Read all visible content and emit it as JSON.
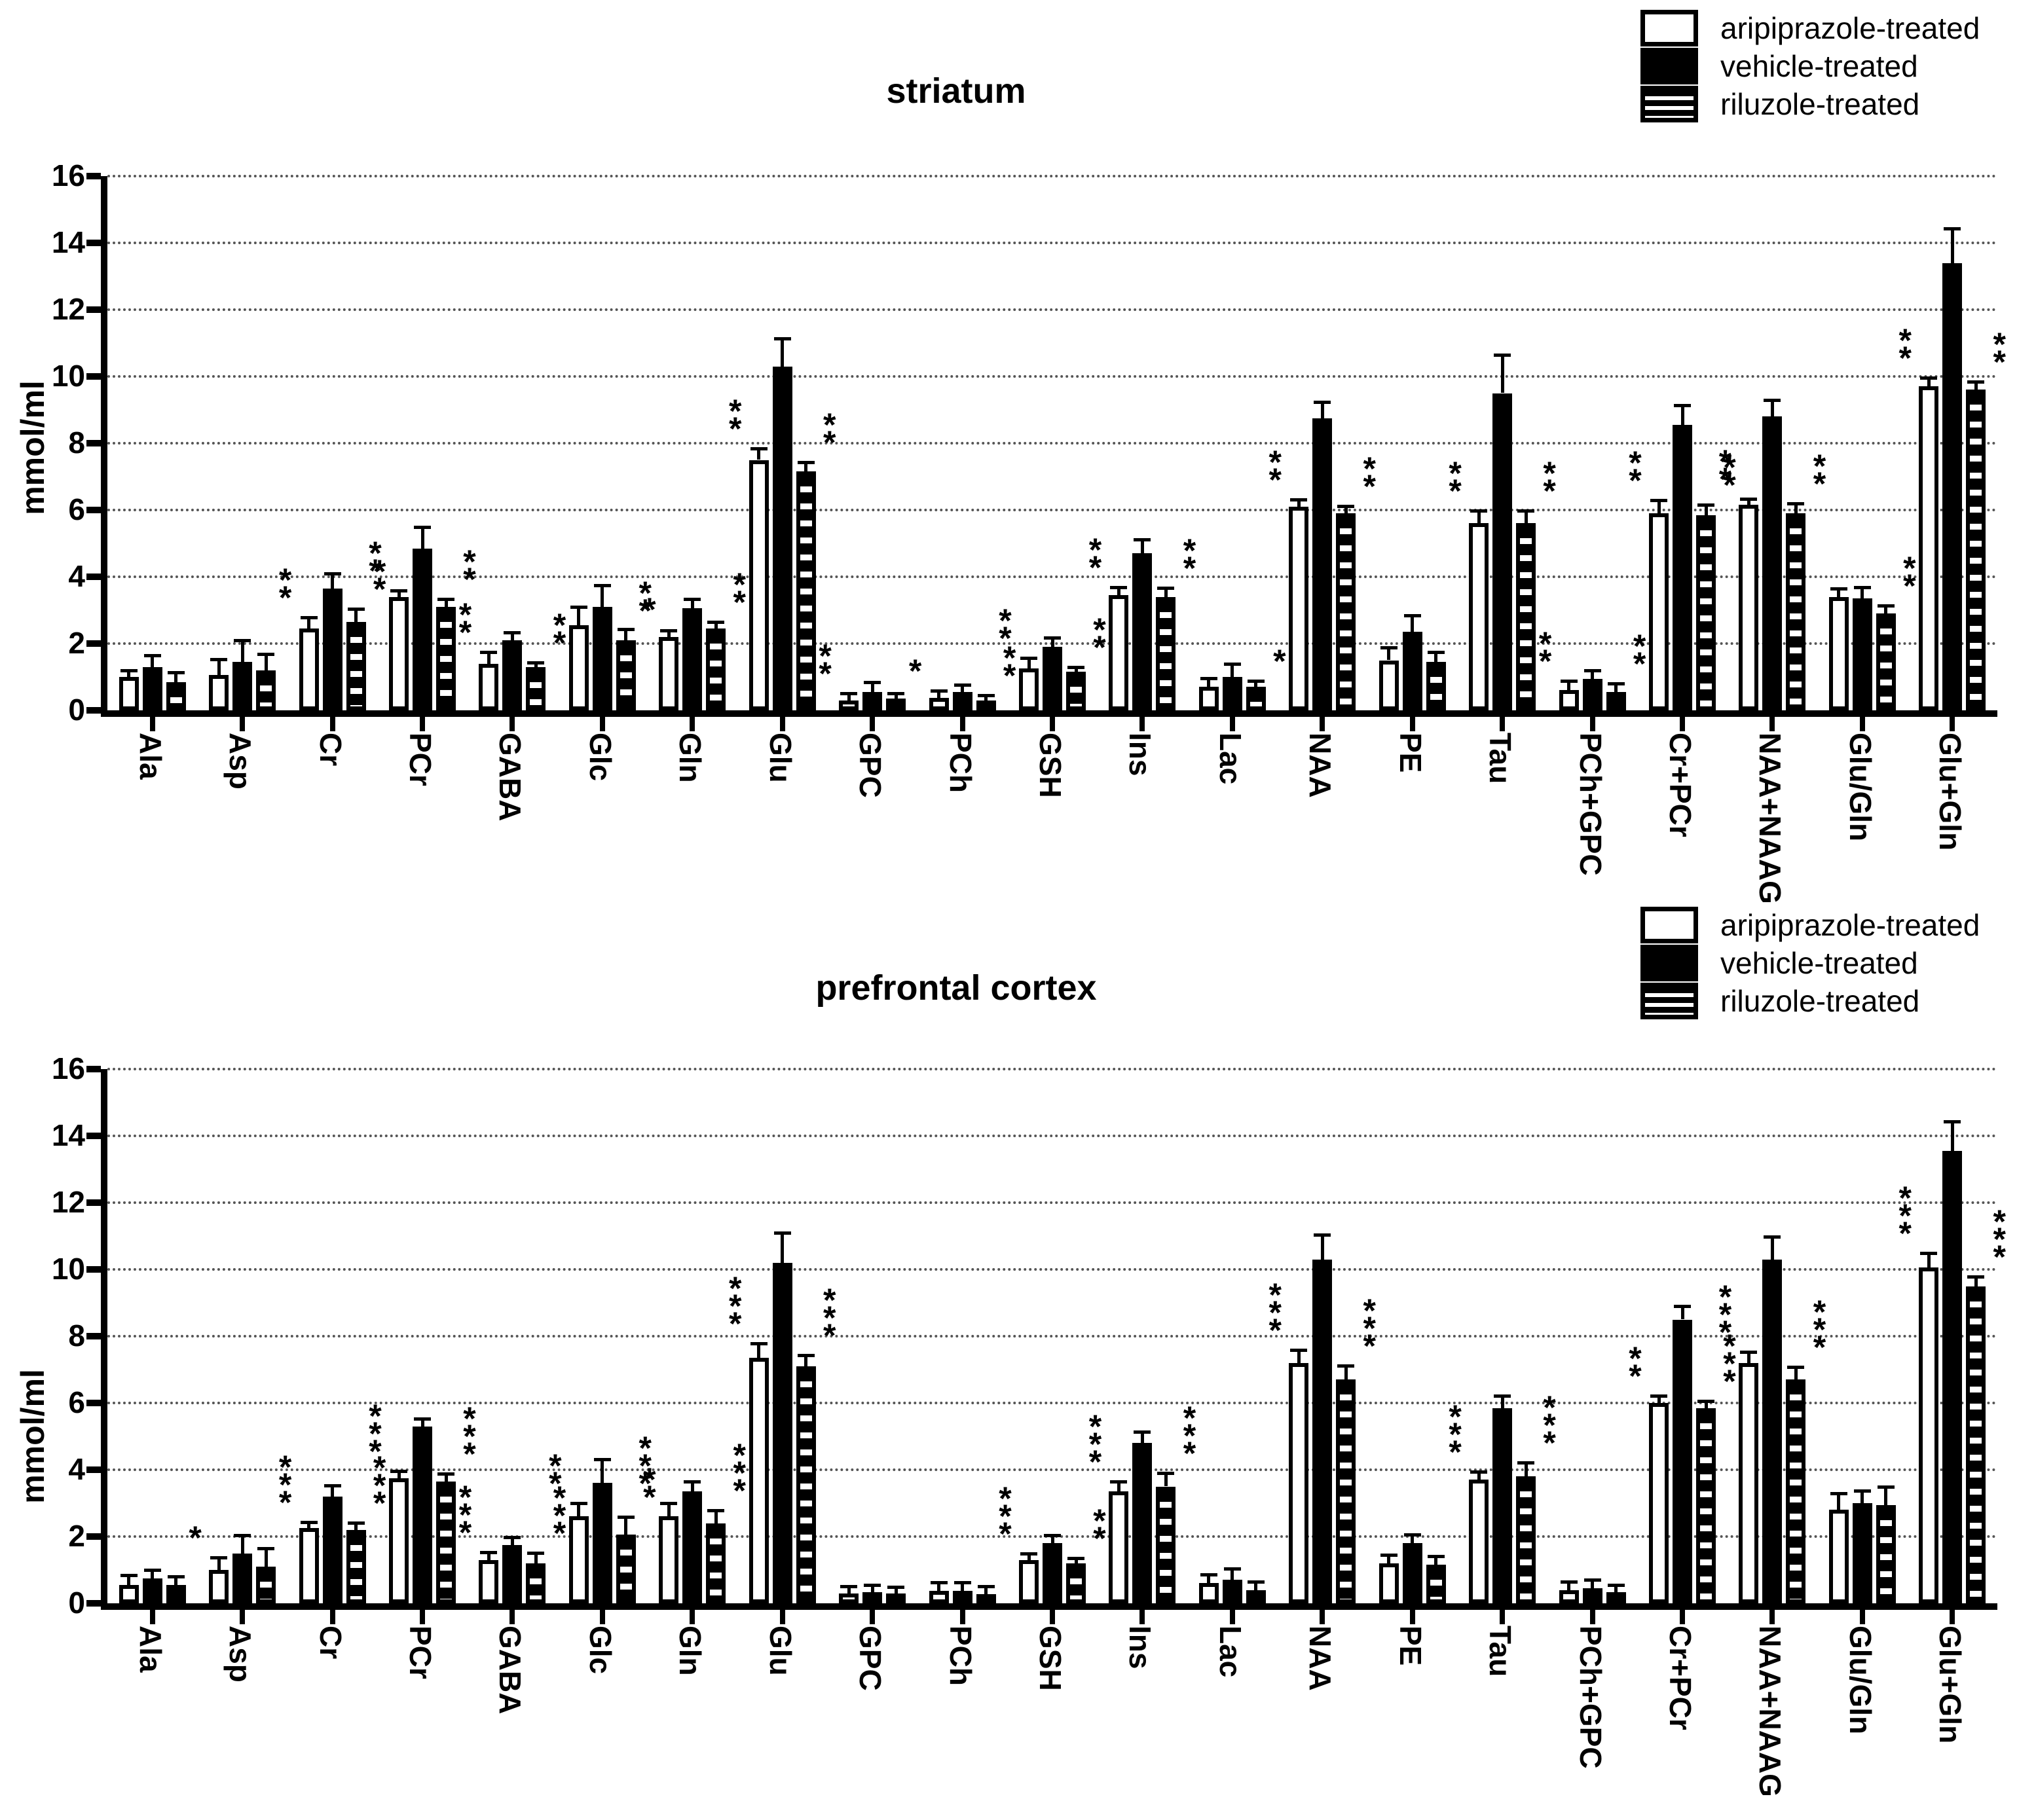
{
  "figure": {
    "background": "#ffffff",
    "axis_color": "#000000",
    "gridline_color": "#555555",
    "gridline_style": "dotted"
  },
  "legend": {
    "position": "top-right",
    "items": [
      {
        "label": "aripiprazole-treated",
        "swatch": "white-outlined"
      },
      {
        "label": "vehicle-treated",
        "swatch": "solid-black"
      },
      {
        "label": "riluzole-treated",
        "swatch": "horizontal-striped"
      }
    ]
  },
  "chart_data": [
    {
      "type": "bar",
      "title": "striatum",
      "ylabel": "mmol/ml",
      "ylim": [
        0,
        16
      ],
      "yticks": [
        0,
        2,
        4,
        6,
        8,
        10,
        12,
        14,
        16
      ],
      "grid": "horizontal-dotted",
      "legend_position": "top-right",
      "categories": [
        "Ala",
        "Asp",
        "Cr",
        "PCr",
        "GABA",
        "Glc",
        "Gln",
        "Glu",
        "GPC",
        "PCh",
        "GSH",
        "Ins",
        "Lac",
        "NAA",
        "PE",
        "Tau",
        "PCh+GPC",
        "Cr+PCr",
        "NAA+NAAG",
        "Glu/Gln",
        "Glu+Gln"
      ],
      "series": [
        {
          "name": "aripiprazole-treated",
          "pattern": "white-outlined",
          "values": [
            1.0,
            1.05,
            2.45,
            3.4,
            1.4,
            2.55,
            2.2,
            7.5,
            0.3,
            0.38,
            1.25,
            3.45,
            0.7,
            6.1,
            1.5,
            5.6,
            0.6,
            5.9,
            6.15,
            3.4,
            9.7
          ],
          "errors": [
            0.15,
            0.45,
            0.3,
            0.15,
            0.3,
            0.5,
            0.15,
            0.3,
            0.18,
            0.17,
            0.27,
            0.2,
            0.22,
            0.18,
            0.35,
            0.35,
            0.25,
            0.35,
            0.15,
            0.2,
            0.22
          ],
          "sig": [
            "",
            "",
            "**",
            "**",
            "**",
            "",
            "**",
            "**",
            "**",
            "*",
            "**",
            "**",
            "",
            "**",
            "",
            "**",
            "**",
            "**",
            "**",
            "",
            "**"
          ]
        },
        {
          "name": "vehicle-treated",
          "pattern": "solid-black",
          "values": [
            1.3,
            1.45,
            3.65,
            4.85,
            2.1,
            3.1,
            3.05,
            10.3,
            0.55,
            0.55,
            1.9,
            4.7,
            1.0,
            8.75,
            2.35,
            9.5,
            0.95,
            8.55,
            8.8,
            3.35,
            13.4
          ],
          "errors": [
            0.3,
            0.6,
            0.4,
            0.6,
            0.2,
            0.6,
            0.25,
            0.8,
            0.25,
            0.18,
            0.23,
            0.38,
            0.35,
            0.45,
            0.45,
            1.1,
            0.2,
            0.55,
            0.45,
            0.3,
            1.0
          ],
          "sig": [
            "",
            "",
            "",
            "",
            "",
            "",
            "",
            "",
            "",
            "",
            "",
            "",
            "",
            "",
            "",
            "",
            "",
            "",
            "",
            "",
            ""
          ]
        },
        {
          "name": "riluzole-treated",
          "pattern": "horizontal-striped",
          "values": [
            0.85,
            1.2,
            2.65,
            3.1,
            1.3,
            2.1,
            2.45,
            7.15,
            0.35,
            0.3,
            1.15,
            3.4,
            0.7,
            5.9,
            1.45,
            5.6,
            0.55,
            5.85,
            5.9,
            2.9,
            9.6
          ],
          "errors": [
            0.25,
            0.45,
            0.35,
            0.2,
            0.1,
            0.3,
            0.15,
            0.25,
            0.13,
            0.12,
            0.1,
            0.22,
            0.15,
            0.17,
            0.25,
            0.35,
            0.22,
            0.26,
            0.25,
            0.2,
            0.2
          ],
          "sig": [
            "",
            "",
            "**",
            "**",
            "**",
            "*",
            "**",
            "**",
            "",
            "**",
            "**",
            "**",
            "*",
            "**",
            "",
            "**",
            "**",
            "**",
            "**",
            "**",
            "**"
          ]
        }
      ]
    },
    {
      "type": "bar",
      "title": "prefrontal cortex",
      "ylabel": "mmol/ml",
      "ylim": [
        0,
        16
      ],
      "yticks": [
        0,
        2,
        4,
        6,
        8,
        10,
        12,
        14,
        16
      ],
      "grid": "horizontal-dotted",
      "legend_position": "top-right",
      "categories": [
        "Ala",
        "Asp",
        "Cr",
        "PCr",
        "GABA",
        "Glc",
        "Gln",
        "Glu",
        "GPC",
        "PCh",
        "GSH",
        "Ins",
        "Lac",
        "NAA",
        "PE",
        "Tau",
        "PCh+GPC",
        "Cr+PCr",
        "NAA+NAAG",
        "Glu/Gln",
        "Glu+Gln"
      ],
      "series": [
        {
          "name": "aripiprazole-treated",
          "pattern": "white-outlined",
          "values": [
            0.55,
            1.0,
            2.25,
            3.75,
            1.3,
            2.6,
            2.6,
            7.35,
            0.3,
            0.38,
            1.3,
            3.35,
            0.6,
            7.2,
            1.2,
            3.7,
            0.4,
            6.0,
            7.2,
            2.8,
            10.05
          ],
          "errors": [
            0.25,
            0.33,
            0.15,
            0.17,
            0.2,
            0.36,
            0.36,
            0.4,
            0.17,
            0.2,
            0.15,
            0.26,
            0.23,
            0.34,
            0.22,
            0.2,
            0.2,
            0.18,
            0.3,
            0.45,
            0.4
          ],
          "sig": [
            "",
            "*",
            "***",
            "***",
            "***",
            "**",
            "***",
            "***",
            "",
            "",
            "***",
            "***",
            "",
            "***",
            "",
            "***",
            "",
            "**",
            "***",
            "",
            "***"
          ]
        },
        {
          "name": "vehicle-treated",
          "pattern": "solid-black",
          "values": [
            0.75,
            1.5,
            3.2,
            5.3,
            1.75,
            3.6,
            3.35,
            10.2,
            0.33,
            0.38,
            1.8,
            4.8,
            0.7,
            10.3,
            1.8,
            5.85,
            0.45,
            8.5,
            10.3,
            3.0,
            13.55
          ],
          "errors": [
            0.22,
            0.5,
            0.3,
            0.2,
            0.2,
            0.68,
            0.26,
            0.85,
            0.18,
            0.2,
            0.2,
            0.3,
            0.3,
            0.7,
            0.22,
            0.33,
            0.22,
            0.37,
            0.65,
            0.34,
            0.85
          ],
          "sig": [
            "",
            "",
            "",
            "",
            "",
            "",
            "",
            "",
            "",
            "",
            "",
            "",
            "",
            "",
            "",
            "",
            "",
            "",
            "",
            "",
            ""
          ]
        },
        {
          "name": "riluzole-treated",
          "pattern": "horizontal-striped",
          "values": [
            0.55,
            1.1,
            2.2,
            3.65,
            1.2,
            2.05,
            2.4,
            7.1,
            0.3,
            0.27,
            1.2,
            3.5,
            0.4,
            6.7,
            1.15,
            3.8,
            0.33,
            5.85,
            6.7,
            2.95,
            9.5
          ],
          "errors": [
            0.22,
            0.5,
            0.17,
            0.2,
            0.28,
            0.5,
            0.35,
            0.3,
            0.15,
            0.2,
            0.12,
            0.37,
            0.2,
            0.37,
            0.23,
            0.38,
            0.18,
            0.16,
            0.34,
            0.5,
            0.25
          ],
          "sig": [
            "",
            "",
            "***",
            "***",
            "***",
            "**",
            "***",
            "***",
            "",
            "",
            "**",
            "***",
            "",
            "***",
            "",
            "***",
            "",
            "***",
            "***",
            "",
            "***"
          ]
        }
      ]
    }
  ]
}
